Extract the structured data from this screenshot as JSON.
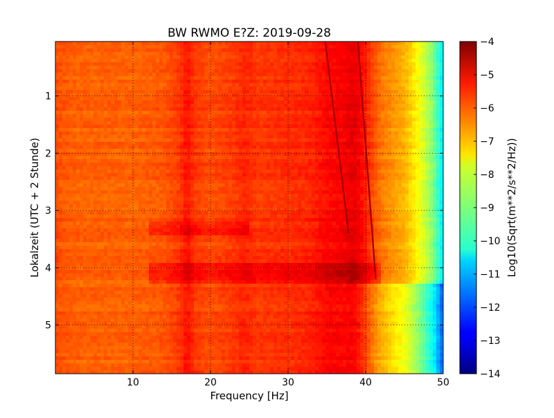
{
  "chart_data": {
    "type": "heatmap",
    "title": "BW RWMO E?Z: 2019-09-28",
    "xlabel": "Frequency [Hz]",
    "ylabel": "Lokalzeit (UTC + 2 Stunde)",
    "xlim": [
      0,
      50
    ],
    "ylim": [
      5.85,
      0.05
    ],
    "x_ticks": [
      10,
      20,
      30,
      40,
      50
    ],
    "y_ticks": [
      1,
      2,
      3,
      4,
      5
    ],
    "grid": true,
    "colormap": "jet",
    "colorbar": {
      "label": "Log10(Sqrt(m**2/s**2/Hz))",
      "range": [
        -14,
        -4
      ],
      "ticks": [
        -4,
        -5,
        -6,
        -7,
        -8,
        -9,
        -10,
        -11,
        -12,
        -13,
        -14
      ]
    },
    "frequency_profile": {
      "frequency_hz": [
        0,
        1,
        3,
        5,
        10,
        14,
        16,
        17,
        18,
        20,
        23,
        24.5,
        26,
        30,
        33,
        35,
        37,
        38.5,
        39.5,
        41,
        42,
        44,
        45,
        46,
        47,
        48,
        49,
        50
      ],
      "log10_psd": [
        -6.0,
        -6.1,
        -6.2,
        -6.2,
        -6.2,
        -6.1,
        -5.8,
        -5.4,
        -5.8,
        -6.0,
        -5.8,
        -5.6,
        -5.8,
        -5.7,
        -5.6,
        -5.3,
        -5.2,
        -5.0,
        -5.3,
        -6.0,
        -6.4,
        -6.8,
        -7.0,
        -7.4,
        -7.9,
        -8.5,
        -9.3,
        -10.5
      ]
    },
    "events": [
      {
        "time_h": [
          3.2,
          3.45
        ],
        "freq_range_hz": [
          12,
          25
        ],
        "log10_psd_change": 0.4
      },
      {
        "time_h": [
          3.9,
          4.25
        ],
        "freq_range_hz": [
          12,
          42
        ],
        "log10_psd_change": 0.5
      }
    ],
    "tonal_lines": [
      {
        "time_h": [
          0.0,
          3.4
        ],
        "freq_hz": [
          34.8,
          37.8
        ]
      },
      {
        "time_h": [
          0.0,
          4.2
        ],
        "freq_hz": [
          39.0,
          41.3
        ]
      }
    ],
    "regime_change": {
      "time_h": 4.25,
      "before_profile_shift_db": 0.0,
      "after_profile_shift": "high frequencies drop by about 1 to 2 decades above 38 Hz"
    }
  }
}
